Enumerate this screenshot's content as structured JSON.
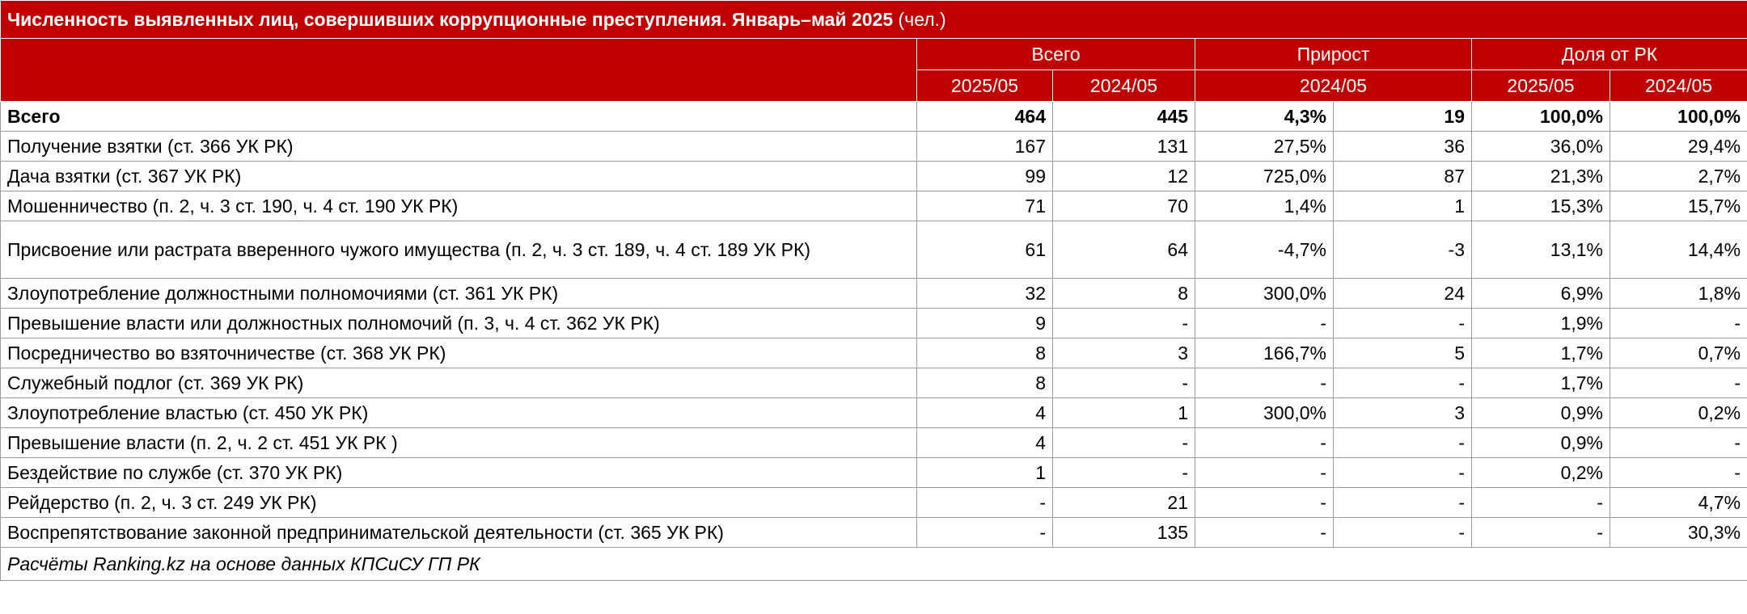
{
  "title": "Численность выявленных лиц, совершивших коррупционные преступления. Январь–май 2025",
  "title_unit": "(чел.)",
  "header": {
    "groups": [
      "Всего",
      "Прирост",
      "Доля от РК"
    ],
    "subheaders": [
      "2025/05",
      "2024/05",
      "2024/05",
      "2025/05",
      "2024/05"
    ]
  },
  "table": {
    "rows": [
      [
        "Всего",
        "464",
        "445",
        "4,3%",
        "19",
        "100,0%",
        "100,0%"
      ],
      [
        "Получение взятки (ст. 366 УК РК)",
        "167",
        "131",
        "27,5%",
        "36",
        "36,0%",
        "29,4%"
      ],
      [
        "Дача взятки (ст. 367 УК РК)",
        "99",
        "12",
        "725,0%",
        "87",
        "21,3%",
        "2,7%"
      ],
      [
        "Мошенничество (п. 2, ч. 3 ст. 190, ч. 4 ст. 190 УК РК)",
        "71",
        "70",
        "1,4%",
        "1",
        "15,3%",
        "15,7%"
      ],
      [
        "Присвоение или растрата вверенного чужого имущества (п. 2, ч. 3 ст. 189, ч. 4 ст. 189  УК РК)",
        "61",
        "64",
        "-4,7%",
        "-3",
        "13,1%",
        "14,4%"
      ],
      [
        "Злоупотребление должностными полномочиями (ст. 361 УК РК)",
        "32",
        "8",
        "300,0%",
        "24",
        "6,9%",
        "1,8%"
      ],
      [
        "Превышение власти или должностных полномочий (п. 3, ч. 4 ст. 362 УК РК)",
        "9",
        "-",
        "-",
        "-",
        "1,9%",
        "-"
      ],
      [
        "Посредничество во взяточничестве (ст. 368 УК РК)",
        "8",
        "3",
        "166,7%",
        "5",
        "1,7%",
        "0,7%"
      ],
      [
        "Служебный подлог (ст. 369 УК РК)",
        "8",
        "-",
        "-",
        "-",
        "1,7%",
        "-"
      ],
      [
        "Злоупотребление властью (ст. 450 УК РК)",
        "4",
        "1",
        "300,0%",
        "3",
        "0,9%",
        "0,2%"
      ],
      [
        "Превышение власти (п. 2, ч. 2 ст. 451 УК РК )",
        "4",
        "-",
        "-",
        "-",
        "0,9%",
        "-"
      ],
      [
        "Бездействие по службе (ст. 370 УК РК)",
        "1",
        "-",
        "-",
        "-",
        "0,2%",
        "-"
      ],
      [
        "Рейдерство (п. 2, ч. 3 ст. 249 УК РК)",
        "-",
        "21",
        "-",
        "-",
        "-",
        "4,7%"
      ],
      [
        "Воспрепятствование законной предпринимательской деятельности (ст. 365 УК РК)",
        "-",
        "135",
        "-",
        "-",
        "-",
        "30,3%"
      ]
    ]
  },
  "footer": "Расчёты Ranking.kz на основе данных КПСиСУ ГП РК"
}
